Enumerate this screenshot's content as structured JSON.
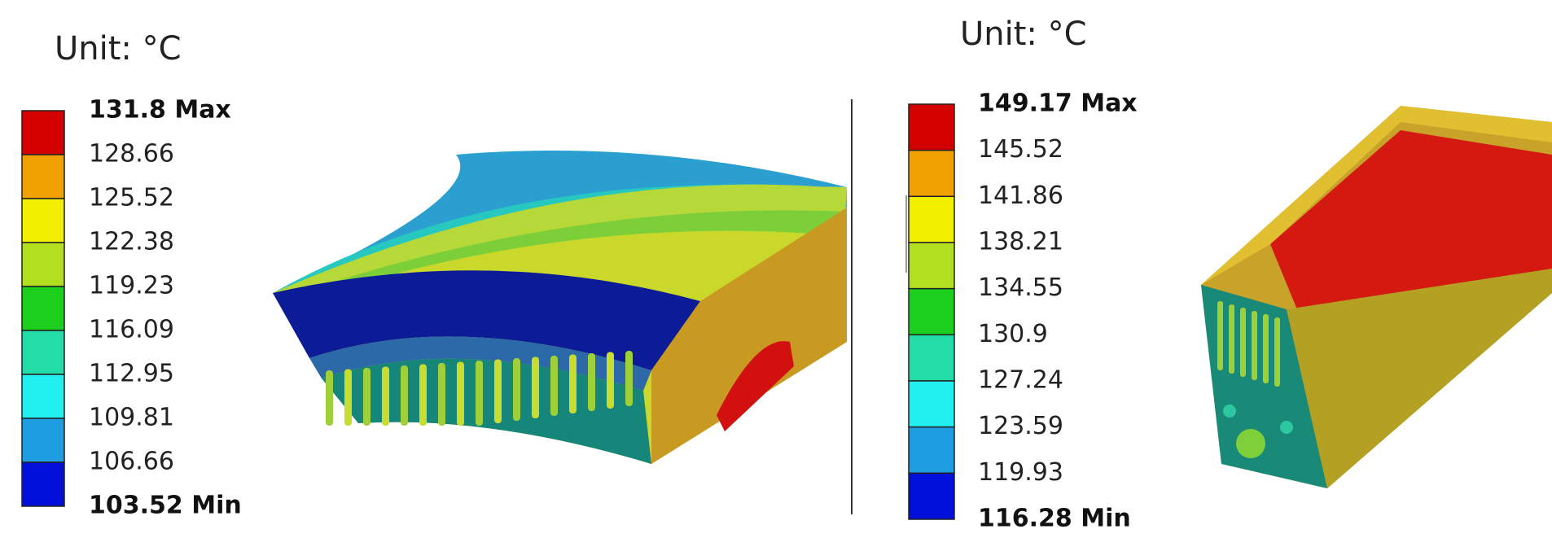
{
  "panels": [
    {
      "unit": "Unit: °C",
      "labels": [
        "131.8 Max",
        "128.66",
        "125.52",
        "122.38",
        "119.23",
        "116.09",
        "112.95",
        "109.81",
        "106.66",
        "103.52 Min"
      ]
    },
    {
      "unit": "Unit: °C",
      "labels": [
        "149.17 Max",
        "145.52",
        "141.86",
        "138.21",
        "134.55",
        "130.9",
        "127.24",
        "123.59",
        "119.93",
        "116.28 Min"
      ]
    }
  ]
}
